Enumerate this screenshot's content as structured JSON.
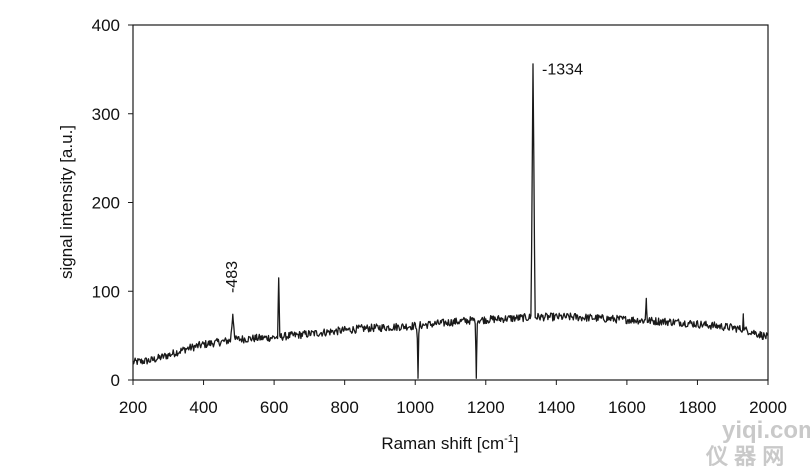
{
  "chart_data": {
    "type": "line",
    "title": "",
    "xlabel": "Raman shift [cm",
    "xlabel_sup": "-1",
    "xlabel_end": "]",
    "ylabel": "signal intensity [a.u.]",
    "xlim": [
      200,
      2000
    ],
    "ylim": [
      0,
      400
    ],
    "xticks": [
      200,
      400,
      600,
      800,
      1000,
      1200,
      1400,
      1600,
      1800,
      2000
    ],
    "yticks": [
      0,
      100,
      200,
      300,
      400
    ],
    "grid": false,
    "line_color": "#1a1a1a",
    "baseline": {
      "x": [
        200,
        250,
        300,
        350,
        400,
        450,
        500,
        550,
        600,
        650,
        700,
        750,
        800,
        850,
        900,
        950,
        1000,
        1050,
        1100,
        1150,
        1200,
        1250,
        1300,
        1350,
        1400,
        1450,
        1500,
        1550,
        1600,
        1650,
        1700,
        1750,
        1800,
        1850,
        1900,
        1950,
        2000
      ],
      "y": [
        20,
        22,
        28,
        35,
        40,
        43,
        46,
        47,
        48,
        50,
        52,
        54,
        56,
        58,
        59,
        60,
        61,
        63,
        65,
        67,
        68,
        69,
        70,
        71,
        71,
        71,
        70,
        69,
        68,
        67,
        66,
        65,
        63,
        61,
        59,
        55,
        48
      ]
    },
    "peaks": [
      {
        "x": 483,
        "height": 74,
        "width": 6
      },
      {
        "x": 613,
        "height": 115,
        "width": 2
      },
      {
        "x": 1008,
        "height": 2,
        "width": 2
      },
      {
        "x": 1173,
        "height": 2,
        "width": 2
      },
      {
        "x": 1334,
        "height": 355,
        "width": 5
      },
      {
        "x": 1655,
        "height": 92,
        "width": 2
      },
      {
        "x": 1930,
        "height": 72,
        "width": 2
      }
    ],
    "annotations": [
      {
        "text": "-483",
        "x": 483,
        "y": 98,
        "rotate": true
      },
      {
        "text": "-1334",
        "x": 1334,
        "y": 350,
        "rotate": false
      }
    ]
  },
  "watermark": {
    "line1": "yiqi.com",
    "line2": "仪 器 网"
  }
}
